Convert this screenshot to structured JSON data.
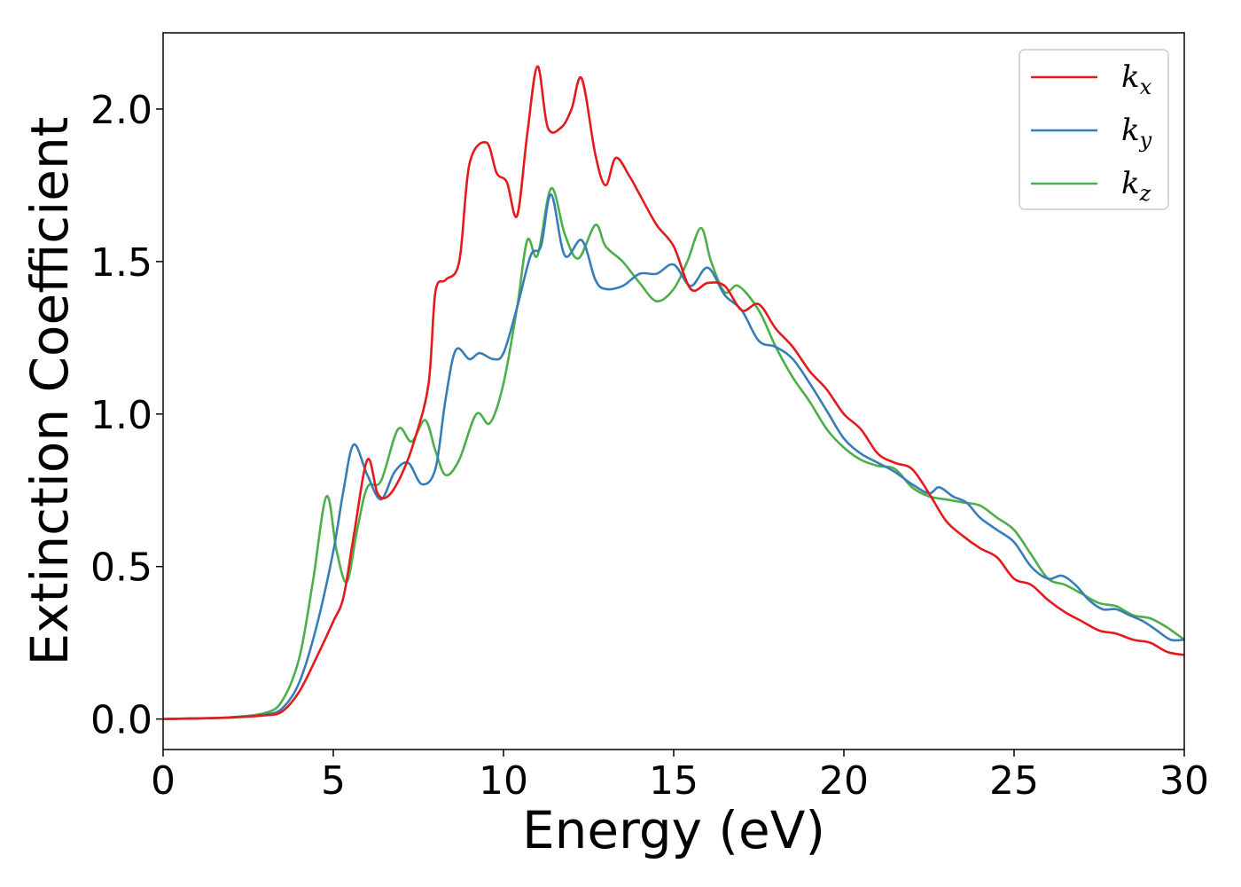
{
  "chart_data": {
    "type": "line",
    "xlabel": "Energy (eV)",
    "ylabel": "Extinction Coefficient",
    "xlim": [
      0,
      30
    ],
    "ylim": [
      -0.1,
      2.25
    ],
    "xticks": [
      0,
      5,
      10,
      15,
      20,
      25,
      30
    ],
    "yticks": [
      0.0,
      0.5,
      1.0,
      1.5,
      2.0
    ],
    "xtick_labels": [
      "0",
      "5",
      "10",
      "15",
      "20",
      "25",
      "30"
    ],
    "ytick_labels": [
      "0.0",
      "0.5",
      "1.0",
      "1.5",
      "2.0"
    ],
    "grid": false,
    "legend_position": "top-right",
    "series": [
      {
        "name": "k",
        "subscript": "x",
        "color": "#e41a1c",
        "points": [
          [
            0,
            0
          ],
          [
            1,
            0.002
          ],
          [
            2,
            0.005
          ],
          [
            3,
            0.012
          ],
          [
            3.5,
            0.025
          ],
          [
            4,
            0.09
          ],
          [
            4.5,
            0.2
          ],
          [
            5,
            0.32
          ],
          [
            5.3,
            0.4
          ],
          [
            5.6,
            0.6
          ],
          [
            6,
            0.85
          ],
          [
            6.3,
            0.74
          ],
          [
            6.6,
            0.73
          ],
          [
            7,
            0.8
          ],
          [
            7.4,
            0.92
          ],
          [
            7.8,
            1.1
          ],
          [
            8,
            1.4
          ],
          [
            8.3,
            1.44
          ],
          [
            8.7,
            1.5
          ],
          [
            9,
            1.82
          ],
          [
            9.5,
            1.89
          ],
          [
            9.8,
            1.79
          ],
          [
            10.1,
            1.76
          ],
          [
            10.4,
            1.65
          ],
          [
            10.7,
            1.92
          ],
          [
            11,
            2.14
          ],
          [
            11.3,
            1.94
          ],
          [
            11.7,
            1.94
          ],
          [
            12,
            2.0
          ],
          [
            12.3,
            2.1
          ],
          [
            12.7,
            1.85
          ],
          [
            13,
            1.75
          ],
          [
            13.3,
            1.84
          ],
          [
            13.7,
            1.78
          ],
          [
            14,
            1.72
          ],
          [
            14.5,
            1.62
          ],
          [
            15,
            1.55
          ],
          [
            15.5,
            1.41
          ],
          [
            16,
            1.43
          ],
          [
            16.5,
            1.42
          ],
          [
            17,
            1.34
          ],
          [
            17.5,
            1.36
          ],
          [
            18,
            1.28
          ],
          [
            18.5,
            1.22
          ],
          [
            19,
            1.14
          ],
          [
            19.5,
            1.08
          ],
          [
            20,
            1.0
          ],
          [
            20.5,
            0.95
          ],
          [
            21,
            0.87
          ],
          [
            21.5,
            0.84
          ],
          [
            22,
            0.82
          ],
          [
            22.5,
            0.74
          ],
          [
            23,
            0.65
          ],
          [
            23.5,
            0.6
          ],
          [
            24,
            0.56
          ],
          [
            24.5,
            0.53
          ],
          [
            25,
            0.46
          ],
          [
            25.5,
            0.44
          ],
          [
            26,
            0.39
          ],
          [
            26.5,
            0.35
          ],
          [
            27,
            0.32
          ],
          [
            27.5,
            0.29
          ],
          [
            28,
            0.28
          ],
          [
            28.5,
            0.26
          ],
          [
            29,
            0.25
          ],
          [
            29.5,
            0.22
          ],
          [
            30,
            0.21
          ]
        ]
      },
      {
        "name": "k",
        "subscript": "y",
        "color": "#377eb8",
        "points": [
          [
            0,
            0
          ],
          [
            1,
            0.002
          ],
          [
            2,
            0.005
          ],
          [
            3,
            0.015
          ],
          [
            3.5,
            0.035
          ],
          [
            4,
            0.12
          ],
          [
            4.5,
            0.3
          ],
          [
            5,
            0.55
          ],
          [
            5.3,
            0.75
          ],
          [
            5.6,
            0.9
          ],
          [
            6,
            0.8
          ],
          [
            6.4,
            0.72
          ],
          [
            6.8,
            0.81
          ],
          [
            7.2,
            0.84
          ],
          [
            7.6,
            0.77
          ],
          [
            8,
            0.82
          ],
          [
            8.3,
            1.05
          ],
          [
            8.6,
            1.21
          ],
          [
            9,
            1.18
          ],
          [
            9.3,
            1.2
          ],
          [
            9.7,
            1.18
          ],
          [
            10,
            1.2
          ],
          [
            10.4,
            1.35
          ],
          [
            10.8,
            1.52
          ],
          [
            11.1,
            1.55
          ],
          [
            11.4,
            1.72
          ],
          [
            11.8,
            1.52
          ],
          [
            12.3,
            1.57
          ],
          [
            12.7,
            1.44
          ],
          [
            13,
            1.41
          ],
          [
            13.5,
            1.42
          ],
          [
            14,
            1.46
          ],
          [
            14.5,
            1.46
          ],
          [
            15,
            1.49
          ],
          [
            15.5,
            1.42
          ],
          [
            16,
            1.48
          ],
          [
            16.5,
            1.39
          ],
          [
            17,
            1.34
          ],
          [
            17.5,
            1.24
          ],
          [
            18,
            1.22
          ],
          [
            18.5,
            1.18
          ],
          [
            19,
            1.1
          ],
          [
            19.5,
            1.01
          ],
          [
            20,
            0.92
          ],
          [
            20.5,
            0.87
          ],
          [
            21,
            0.84
          ],
          [
            21.5,
            0.81
          ],
          [
            22,
            0.77
          ],
          [
            22.5,
            0.74
          ],
          [
            22.8,
            0.76
          ],
          [
            23.2,
            0.73
          ],
          [
            23.6,
            0.71
          ],
          [
            24,
            0.66
          ],
          [
            24.5,
            0.62
          ],
          [
            25,
            0.58
          ],
          [
            25.5,
            0.5
          ],
          [
            26,
            0.46
          ],
          [
            26.4,
            0.47
          ],
          [
            26.8,
            0.44
          ],
          [
            27.2,
            0.39
          ],
          [
            27.6,
            0.36
          ],
          [
            28,
            0.36
          ],
          [
            28.4,
            0.34
          ],
          [
            28.8,
            0.32
          ],
          [
            29.2,
            0.29
          ],
          [
            29.6,
            0.26
          ],
          [
            30,
            0.26
          ]
        ]
      },
      {
        "name": "k",
        "subscript": "z",
        "color": "#4daf4a",
        "points": [
          [
            0,
            0
          ],
          [
            1,
            0.002
          ],
          [
            2,
            0.006
          ],
          [
            3,
            0.02
          ],
          [
            3.5,
            0.06
          ],
          [
            4,
            0.2
          ],
          [
            4.4,
            0.45
          ],
          [
            4.8,
            0.73
          ],
          [
            5.1,
            0.55
          ],
          [
            5.4,
            0.45
          ],
          [
            5.7,
            0.62
          ],
          [
            6,
            0.76
          ],
          [
            6.4,
            0.78
          ],
          [
            6.9,
            0.95
          ],
          [
            7.3,
            0.91
          ],
          [
            7.7,
            0.98
          ],
          [
            8,
            0.88
          ],
          [
            8.3,
            0.8
          ],
          [
            8.7,
            0.85
          ],
          [
            9.2,
            1.0
          ],
          [
            9.6,
            0.97
          ],
          [
            10,
            1.1
          ],
          [
            10.4,
            1.35
          ],
          [
            10.7,
            1.57
          ],
          [
            11,
            1.52
          ],
          [
            11.4,
            1.74
          ],
          [
            11.8,
            1.59
          ],
          [
            12.2,
            1.51
          ],
          [
            12.7,
            1.62
          ],
          [
            13,
            1.55
          ],
          [
            13.5,
            1.5
          ],
          [
            14,
            1.43
          ],
          [
            14.5,
            1.37
          ],
          [
            15,
            1.41
          ],
          [
            15.4,
            1.5
          ],
          [
            15.8,
            1.61
          ],
          [
            16.1,
            1.5
          ],
          [
            16.5,
            1.4
          ],
          [
            16.9,
            1.42
          ],
          [
            17.5,
            1.34
          ],
          [
            18,
            1.22
          ],
          [
            18.5,
            1.12
          ],
          [
            19,
            1.04
          ],
          [
            19.5,
            0.95
          ],
          [
            20,
            0.89
          ],
          [
            20.5,
            0.85
          ],
          [
            21,
            0.83
          ],
          [
            21.5,
            0.82
          ],
          [
            22,
            0.76
          ],
          [
            22.5,
            0.73
          ],
          [
            23,
            0.72
          ],
          [
            23.5,
            0.71
          ],
          [
            24,
            0.7
          ],
          [
            24.5,
            0.66
          ],
          [
            25,
            0.62
          ],
          [
            25.5,
            0.54
          ],
          [
            26,
            0.46
          ],
          [
            26.5,
            0.44
          ],
          [
            27,
            0.41
          ],
          [
            27.5,
            0.38
          ],
          [
            28,
            0.37
          ],
          [
            28.5,
            0.34
          ],
          [
            29,
            0.33
          ],
          [
            29.5,
            0.3
          ],
          [
            30,
            0.26
          ]
        ]
      }
    ]
  }
}
